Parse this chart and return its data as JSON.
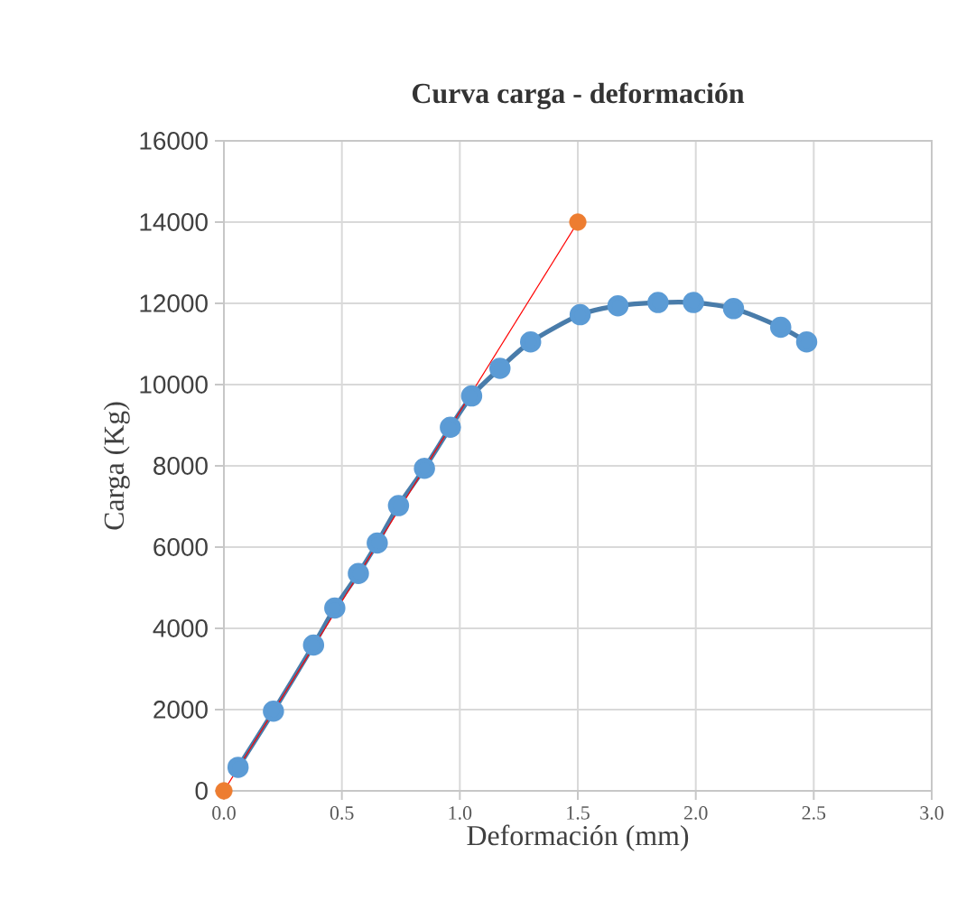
{
  "chart_data": {
    "type": "line",
    "title": "Curva  carga - deformación",
    "xlabel": "Deformación  (mm)",
    "ylabel": "Carga (Kg)",
    "xlim": [
      0,
      3
    ],
    "ylim": [
      0,
      16000
    ],
    "xticks": [
      {
        "value": 0,
        "label": "0.0"
      },
      {
        "value": 0.5,
        "label": "0.5"
      },
      {
        "value": 1,
        "label": "1.0"
      },
      {
        "value": 1.5,
        "label": "1.5"
      },
      {
        "value": 2,
        "label": "2.0"
      },
      {
        "value": 2.5,
        "label": "2.5"
      },
      {
        "value": 3,
        "label": "3.0"
      }
    ],
    "yticks": [
      0,
      2000,
      4000,
      6000,
      8000,
      10000,
      12000,
      14000,
      16000
    ],
    "grid": true,
    "series": [
      {
        "color": "#5b9bd5",
        "marker": "circle",
        "x": [
          0.06,
          0.21,
          0.38,
          0.47,
          0.57,
          0.65,
          0.74,
          0.85,
          0.96,
          1.05,
          1.17,
          1.3,
          1.51,
          1.67,
          1.84,
          1.99,
          2.16,
          2.36,
          2.47
        ],
        "values": [
          580,
          1960,
          3590,
          4500,
          5350,
          6100,
          7020,
          7940,
          8950,
          9720,
          10400,
          11050,
          11720,
          11940,
          12020,
          12020,
          11870,
          11410,
          11050
        ]
      },
      {
        "type": "line",
        "color": "#ff0000",
        "marker": "none",
        "x": [
          0,
          1.5
        ],
        "values": [
          0,
          14000
        ]
      },
      {
        "type": "scatter",
        "color": "#ed7d31",
        "marker": "circle",
        "x": [
          0,
          1.5
        ],
        "values": [
          0,
          14000
        ]
      }
    ]
  }
}
